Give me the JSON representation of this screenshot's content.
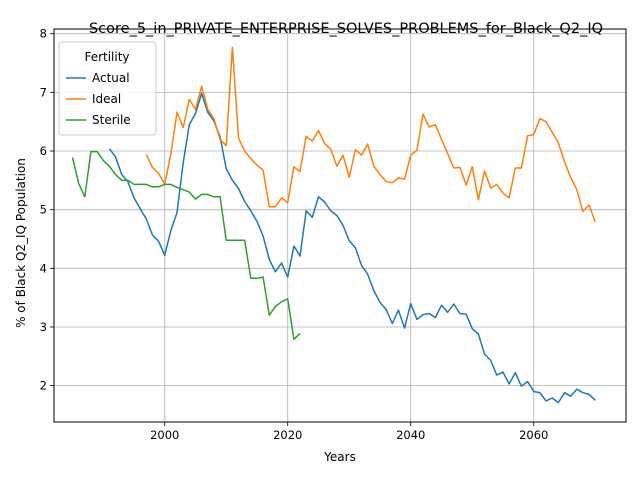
{
  "chart_data": {
    "type": "line",
    "title": "Score_5_in_PRIVATE_ENTERPRISE_SOLVES_PROBLEMS_for_Black_Q2_IQ",
    "xlabel": "Years",
    "ylabel": "% of Black Q2_IQ Population",
    "xlim": [
      1982,
      2075
    ],
    "ylim": [
      1.38,
      8.08
    ],
    "xticks": [
      2000,
      2020,
      2040,
      2060
    ],
    "yticks": [
      2,
      3,
      4,
      5,
      6,
      7,
      8
    ],
    "grid": true,
    "legend": {
      "title": "Fertility",
      "position": "top-left"
    },
    "series": [
      {
        "name": "Actual",
        "color": "#1f77b4",
        "points": [
          [
            1991,
            6.04
          ],
          [
            1992,
            5.9
          ],
          [
            1993,
            5.6
          ],
          [
            1994,
            5.48
          ],
          [
            1995,
            5.2
          ],
          [
            1996,
            5.02
          ],
          [
            1997,
            4.84
          ],
          [
            1998,
            4.57
          ],
          [
            1999,
            4.46
          ],
          [
            2000,
            4.22
          ],
          [
            2001,
            4.65
          ],
          [
            2002,
            4.95
          ],
          [
            2003,
            5.8
          ],
          [
            2004,
            6.45
          ],
          [
            2005,
            6.64
          ],
          [
            2006,
            6.98
          ],
          [
            2007,
            6.66
          ],
          [
            2008,
            6.51
          ],
          [
            2009,
            6.24
          ],
          [
            2010,
            5.7
          ],
          [
            2011,
            5.5
          ],
          [
            2012,
            5.36
          ],
          [
            2013,
            5.14
          ],
          [
            2014,
            4.98
          ],
          [
            2015,
            4.8
          ],
          [
            2016,
            4.55
          ],
          [
            2017,
            4.15
          ],
          [
            2018,
            3.94
          ],
          [
            2019,
            4.09
          ],
          [
            2020,
            3.85
          ],
          [
            2021,
            4.38
          ],
          [
            2022,
            4.21
          ],
          [
            2023,
            4.98
          ],
          [
            2024,
            4.87
          ],
          [
            2025,
            5.22
          ],
          [
            2026,
            5.13
          ],
          [
            2027,
            4.98
          ],
          [
            2028,
            4.9
          ],
          [
            2029,
            4.73
          ],
          [
            2030,
            4.47
          ],
          [
            2031,
            4.35
          ],
          [
            2032,
            4.05
          ],
          [
            2033,
            3.9
          ],
          [
            2034,
            3.62
          ],
          [
            2035,
            3.42
          ],
          [
            2036,
            3.3
          ],
          [
            2037,
            3.06
          ],
          [
            2038,
            3.29
          ],
          [
            2039,
            2.98
          ],
          [
            2040,
            3.4
          ],
          [
            2041,
            3.13
          ],
          [
            2042,
            3.21
          ],
          [
            2043,
            3.23
          ],
          [
            2044,
            3.16
          ],
          [
            2045,
            3.37
          ],
          [
            2046,
            3.25
          ],
          [
            2047,
            3.39
          ],
          [
            2048,
            3.23
          ],
          [
            2049,
            3.22
          ],
          [
            2050,
            2.97
          ],
          [
            2051,
            2.88
          ],
          [
            2052,
            2.54
          ],
          [
            2053,
            2.43
          ],
          [
            2054,
            2.18
          ],
          [
            2055,
            2.23
          ],
          [
            2056,
            2.03
          ],
          [
            2057,
            2.22
          ],
          [
            2058,
            1.99
          ],
          [
            2059,
            2.07
          ],
          [
            2060,
            1.9
          ],
          [
            2061,
            1.88
          ],
          [
            2062,
            1.74
          ],
          [
            2063,
            1.79
          ],
          [
            2064,
            1.71
          ],
          [
            2065,
            1.88
          ],
          [
            2066,
            1.82
          ],
          [
            2067,
            1.94
          ],
          [
            2068,
            1.88
          ],
          [
            2069,
            1.85
          ],
          [
            2070,
            1.75
          ]
        ]
      },
      {
        "name": "Ideal",
        "color": "#ff7f0e",
        "points": [
          [
            1997,
            5.94
          ],
          [
            1998,
            5.72
          ],
          [
            1999,
            5.62
          ],
          [
            2000,
            5.43
          ],
          [
            2001,
            5.95
          ],
          [
            2002,
            6.66
          ],
          [
            2003,
            6.4
          ],
          [
            2004,
            6.88
          ],
          [
            2005,
            6.71
          ],
          [
            2006,
            7.1
          ],
          [
            2007,
            6.71
          ],
          [
            2008,
            6.55
          ],
          [
            2009,
            6.2
          ],
          [
            2010,
            6.09
          ],
          [
            2011,
            7.77
          ],
          [
            2012,
            6.22
          ],
          [
            2013,
            6.0
          ],
          [
            2014,
            5.87
          ],
          [
            2015,
            5.76
          ],
          [
            2016,
            5.67
          ],
          [
            2017,
            5.05
          ],
          [
            2018,
            5.05
          ],
          [
            2019,
            5.2
          ],
          [
            2020,
            5.12
          ],
          [
            2021,
            5.73
          ],
          [
            2022,
            5.65
          ],
          [
            2023,
            6.25
          ],
          [
            2024,
            6.17
          ],
          [
            2025,
            6.35
          ],
          [
            2026,
            6.13
          ],
          [
            2027,
            6.03
          ],
          [
            2028,
            5.74
          ],
          [
            2029,
            5.93
          ],
          [
            2030,
            5.55
          ],
          [
            2031,
            6.02
          ],
          [
            2032,
            5.93
          ],
          [
            2033,
            6.12
          ],
          [
            2034,
            5.74
          ],
          [
            2035,
            5.6
          ],
          [
            2036,
            5.48
          ],
          [
            2037,
            5.46
          ],
          [
            2038,
            5.54
          ],
          [
            2039,
            5.52
          ],
          [
            2040,
            5.93
          ],
          [
            2041,
            6.01
          ],
          [
            2042,
            6.63
          ],
          [
            2043,
            6.41
          ],
          [
            2044,
            6.45
          ],
          [
            2045,
            6.2
          ],
          [
            2046,
            5.96
          ],
          [
            2047,
            5.71
          ],
          [
            2048,
            5.72
          ],
          [
            2049,
            5.42
          ],
          [
            2050,
            5.73
          ],
          [
            2051,
            5.17
          ],
          [
            2052,
            5.66
          ],
          [
            2053,
            5.37
          ],
          [
            2054,
            5.43
          ],
          [
            2055,
            5.28
          ],
          [
            2056,
            5.2
          ],
          [
            2057,
            5.71
          ],
          [
            2058,
            5.71
          ],
          [
            2059,
            6.26
          ],
          [
            2060,
            6.28
          ],
          [
            2061,
            6.55
          ],
          [
            2062,
            6.5
          ],
          [
            2063,
            6.32
          ],
          [
            2064,
            6.14
          ],
          [
            2065,
            5.82
          ],
          [
            2066,
            5.55
          ],
          [
            2067,
            5.34
          ],
          [
            2068,
            4.97
          ],
          [
            2069,
            5.08
          ],
          [
            2070,
            4.79
          ]
        ]
      },
      {
        "name": "Sterile",
        "color": "#2ca02c",
        "points": [
          [
            1985,
            5.89
          ],
          [
            1986,
            5.45
          ],
          [
            1987,
            5.22
          ],
          [
            1988,
            5.99
          ],
          [
            1989,
            5.99
          ],
          [
            1990,
            5.84
          ],
          [
            1991,
            5.74
          ],
          [
            1992,
            5.6
          ],
          [
            1993,
            5.5
          ],
          [
            1994,
            5.5
          ],
          [
            1995,
            5.43
          ],
          [
            1996,
            5.43
          ],
          [
            1997,
            5.43
          ],
          [
            1998,
            5.39
          ],
          [
            1999,
            5.39
          ],
          [
            2000,
            5.43
          ],
          [
            2001,
            5.43
          ],
          [
            2002,
            5.38
          ],
          [
            2003,
            5.34
          ],
          [
            2004,
            5.3
          ],
          [
            2005,
            5.18
          ],
          [
            2006,
            5.26
          ],
          [
            2007,
            5.26
          ],
          [
            2008,
            5.22
          ],
          [
            2009,
            5.22
          ],
          [
            2010,
            4.48
          ],
          [
            2011,
            4.48
          ],
          [
            2012,
            4.48
          ],
          [
            2013,
            4.48
          ],
          [
            2014,
            3.83
          ],
          [
            2015,
            3.83
          ],
          [
            2016,
            3.85
          ],
          [
            2017,
            3.2
          ],
          [
            2018,
            3.35
          ],
          [
            2019,
            3.43
          ],
          [
            2020,
            3.48
          ],
          [
            2021,
            2.79
          ],
          [
            2022,
            2.89
          ]
        ]
      }
    ]
  }
}
